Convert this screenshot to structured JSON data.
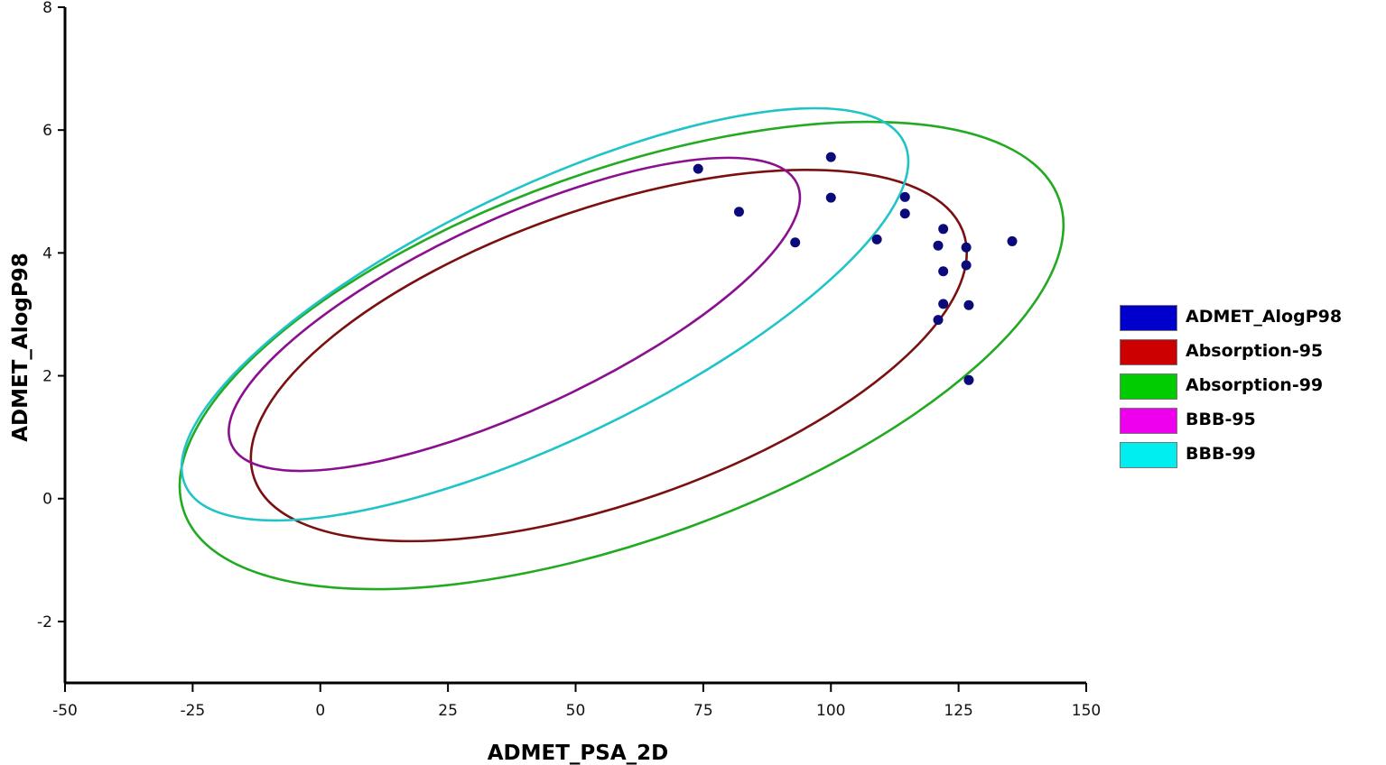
{
  "chart_data": {
    "type": "scatter",
    "xlabel": "ADMET_PSA_2D",
    "ylabel": "ADMET_AlogP98",
    "xlim": [
      -50,
      150
    ],
    "ylim": [
      -3,
      8
    ],
    "xticks": [
      -50,
      -25,
      0,
      25,
      50,
      75,
      100,
      125,
      150
    ],
    "yticks": [
      -2,
      0,
      2,
      4,
      6,
      8
    ],
    "grid": false,
    "legend_position": "right",
    "points": {
      "name": "ADMET_AlogP98",
      "color": "#0a0a7a",
      "x": [
        74,
        82,
        93,
        100,
        100,
        109,
        114.5,
        114.5,
        121,
        121,
        122,
        122,
        122,
        126.5,
        126.5,
        127,
        127,
        135.5
      ],
      "y": [
        5.37,
        4.67,
        4.17,
        5.56,
        4.9,
        4.22,
        4.91,
        4.64,
        4.12,
        2.91,
        4.39,
        3.7,
        3.17,
        4.09,
        3.8,
        3.15,
        1.93,
        4.19
      ]
    },
    "ellipses": [
      {
        "name": "Absorption-95",
        "color": "#7a1010",
        "center": [
          56.5,
          2.33
        ],
        "rx": 73.5,
        "ry": 2.4,
        "angle": -19.1
      },
      {
        "name": "Absorption-99",
        "color": "#22aa22",
        "center": [
          59,
          2.33
        ],
        "rx": 91,
        "ry": 3.0,
        "angle": -19.7
      },
      {
        "name": "BBB-95",
        "color": "#8a1090",
        "center": [
          38,
          3.0
        ],
        "rx": 61,
        "ry": 1.55,
        "angle": -24.8
      },
      {
        "name": "BBB-99",
        "color": "#20c4c8",
        "center": [
          44,
          3.0
        ],
        "rx": 78,
        "ry": 2.05,
        "angle": -25.6
      }
    ],
    "legend": [
      {
        "label": "ADMET_AlogP98",
        "color": "#0000cc"
      },
      {
        "label": "Absorption-95",
        "color": "#cc0000"
      },
      {
        "label": "Absorption-99",
        "color": "#00cc00"
      },
      {
        "label": "BBB-95",
        "color": "#ee00ee"
      },
      {
        "label": "BBB-99",
        "color": "#00eeee"
      }
    ]
  }
}
